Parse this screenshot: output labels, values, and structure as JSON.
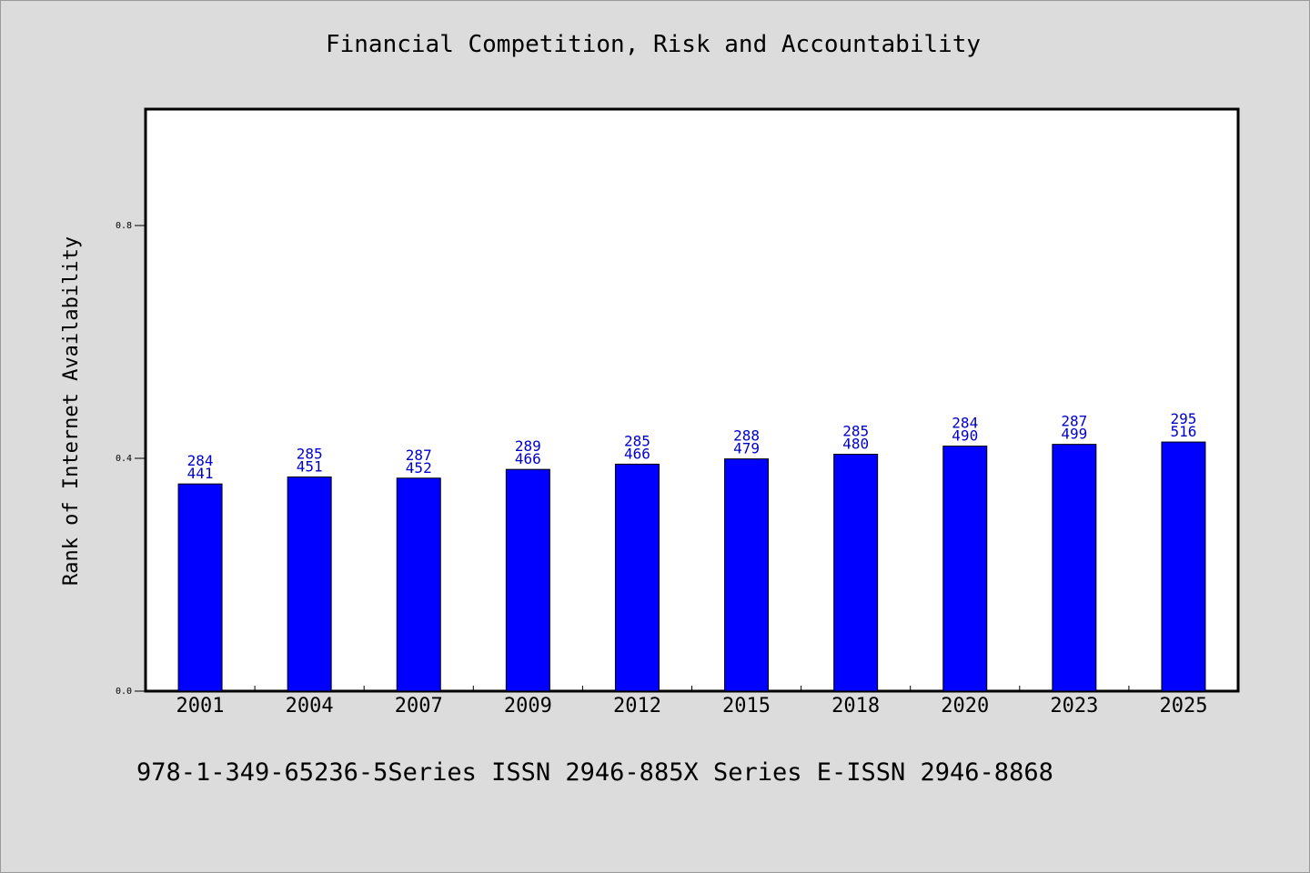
{
  "page": {
    "title": "Financial Competition, Risk and Accountability",
    "footer": "978-1-349-65236-5Series ISSN 2946-885X Series E-ISSN 2946-8868"
  },
  "chart_data": {
    "type": "bar",
    "title": "Financial Competition, Risk and Accountability",
    "xlabel": "",
    "ylabel": "Rank of Internet Availability",
    "categories": [
      "2001",
      "2004",
      "2007",
      "2009",
      "2012",
      "2015",
      "2018",
      "2020",
      "2023",
      "2025"
    ],
    "values": [
      0.356,
      0.368,
      0.366,
      0.381,
      0.39,
      0.399,
      0.407,
      0.421,
      0.424,
      0.428
    ],
    "data_labels": [
      [
        "284",
        "441"
      ],
      [
        "285",
        "451"
      ],
      [
        "287",
        "452"
      ],
      [
        "289",
        "466"
      ],
      [
        "285",
        "466"
      ],
      [
        "288",
        "479"
      ],
      [
        "285",
        "480"
      ],
      [
        "284",
        "490"
      ],
      [
        "287",
        "499"
      ],
      [
        "295",
        "516"
      ]
    ],
    "yticks": [
      "0.0",
      "0.4",
      "0.8"
    ],
    "ytick_values": [
      0.0,
      0.4,
      0.8
    ],
    "ylim": [
      0,
      1.0
    ],
    "grid": false,
    "legend": "none",
    "bar_color": "#0000ff",
    "label_color": "#0000cc",
    "axis_color": "#000000"
  }
}
